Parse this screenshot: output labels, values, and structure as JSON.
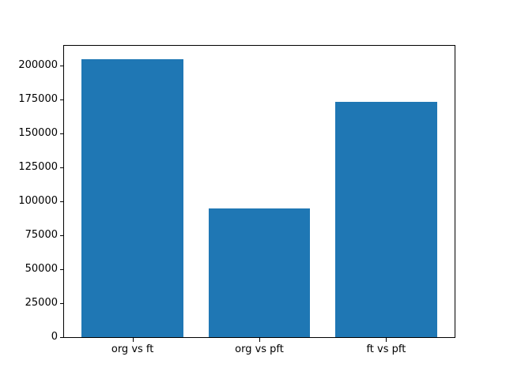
{
  "chart_data": {
    "type": "bar",
    "title": "",
    "xlabel": "",
    "ylabel": "",
    "categories": [
      "org vs ft",
      "org vs pft",
      "ft vs pft"
    ],
    "values": [
      204650,
      95050,
      173250
    ],
    "yticks": [
      0,
      25000,
      50000,
      75000,
      100000,
      125000,
      150000,
      175000,
      200000
    ],
    "ylim": [
      0,
      214534
    ],
    "xlim": [
      -0.54,
      2.54
    ],
    "bar_width_fraction": 0.8,
    "grid": false,
    "legend": null,
    "colors": {
      "bar": "#1f77b4",
      "spine": "#000000",
      "background": "#ffffff",
      "text": "#000000"
    }
  }
}
